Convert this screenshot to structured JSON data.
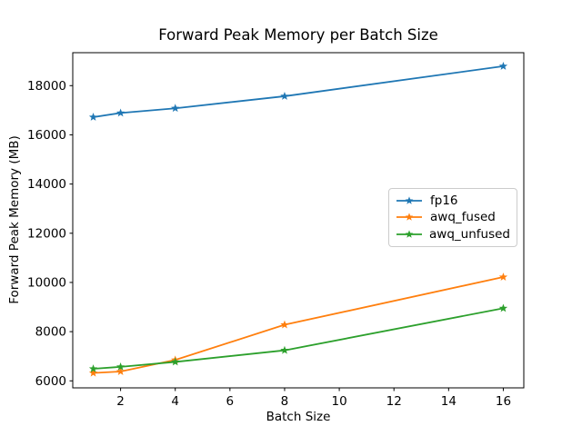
{
  "chart_data": {
    "type": "line",
    "title": "Forward Peak Memory per Batch Size",
    "xlabel": "Batch Size",
    "ylabel": "Forward Peak Memory (MB)",
    "x": [
      1,
      2,
      4,
      8,
      16
    ],
    "series": [
      {
        "name": "fp16",
        "color": "#1f77b4",
        "marker": "star",
        "values": [
          16720,
          16890,
          17080,
          17570,
          18790
        ]
      },
      {
        "name": "awq_fused",
        "color": "#ff7f0e",
        "marker": "star",
        "values": [
          6320,
          6380,
          6850,
          8280,
          10220
        ]
      },
      {
        "name": "awq_unfused",
        "color": "#2ca02c",
        "marker": "star",
        "values": [
          6490,
          6570,
          6770,
          7240,
          8950
        ]
      }
    ],
    "xticks": [
      2,
      4,
      6,
      8,
      10,
      12,
      14,
      16
    ],
    "yticks": [
      6000,
      8000,
      10000,
      12000,
      14000,
      16000,
      18000
    ],
    "xlim": [
      0.25,
      16.75
    ],
    "ylim": [
      5715,
      19340
    ],
    "grid": false,
    "legend_position": "center right",
    "axis_color": "#000000",
    "background_color": "#ffffff"
  }
}
